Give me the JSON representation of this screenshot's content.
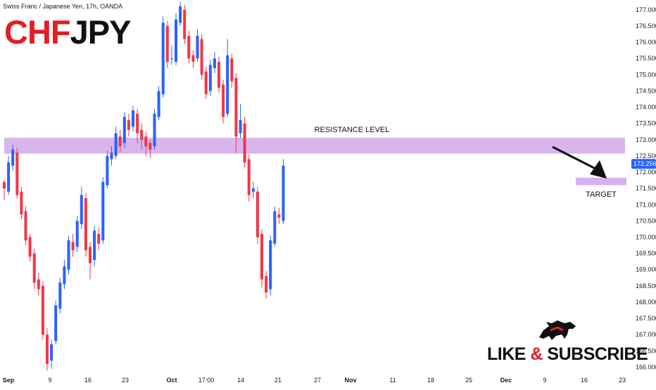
{
  "header": {
    "title": "Swiss Franc / Japanese Yen, 17h, OANDA"
  },
  "ticker": {
    "part1": "CHF",
    "part2": "JPY"
  },
  "badge": {
    "like": "LIKE",
    "amp": "&",
    "subscribe": "SUBSCRIBE"
  },
  "colors": {
    "up": "#2962ff",
    "down": "#f23645",
    "zone": "#d2a8eb",
    "price_tag": "#2962ff"
  },
  "chart_data": {
    "type": "candlestick",
    "ylim": [
      165.75,
      177.3
    ],
    "y_ticks": [
      "177.000",
      "176.500",
      "176.000",
      "175.500",
      "175.000",
      "174.500",
      "174.000",
      "173.500",
      "173.000",
      "172.500",
      "172.000",
      "171.500",
      "171.000",
      "170.500",
      "170.000",
      "169.500",
      "169.000",
      "168.500",
      "168.000",
      "167.500",
      "167.000",
      "166.500",
      "166.000"
    ],
    "x_ticks": [
      "Sep",
      "9",
      "16",
      "23",
      "Oct",
      "17:00",
      "14",
      "21",
      "27",
      "Nov",
      "11",
      "18",
      "25",
      "Dec",
      "9",
      "16",
      "23"
    ],
    "last_price": "172.256",
    "annotations": {
      "resistance_label": "RESISTANCE LEVEL",
      "target_label": "TARGET"
    },
    "resistance_zone": [
      172.57,
      173.06
    ],
    "target_zone": [
      171.6,
      171.83
    ],
    "candles": [
      [
        171.7,
        171.5,
        171.75,
        171.15
      ],
      [
        171.4,
        172.3,
        172.5,
        171.3
      ],
      [
        172.2,
        172.7,
        172.85,
        172.05
      ],
      [
        172.6,
        171.3,
        172.75,
        171.2
      ],
      [
        171.4,
        170.7,
        171.55,
        170.55
      ],
      [
        170.8,
        169.9,
        170.95,
        169.75
      ],
      [
        170.0,
        169.4,
        170.1,
        169.25
      ],
      [
        169.5,
        168.6,
        169.65,
        168.4
      ],
      [
        168.7,
        168.4,
        168.9,
        168.2
      ],
      [
        168.5,
        167.0,
        168.65,
        166.85
      ],
      [
        167.0,
        166.1,
        167.2,
        165.9
      ],
      [
        166.2,
        166.7,
        166.85,
        165.95
      ],
      [
        166.8,
        167.9,
        168.05,
        166.7
      ],
      [
        167.8,
        168.6,
        168.75,
        167.65
      ],
      [
        168.55,
        169.1,
        169.3,
        168.4
      ],
      [
        169.0,
        169.9,
        170.05,
        168.85
      ],
      [
        169.85,
        169.6,
        170.1,
        169.4
      ],
      [
        169.7,
        170.5,
        170.65,
        169.55
      ],
      [
        170.4,
        171.3,
        171.55,
        170.25
      ],
      [
        171.2,
        169.6,
        171.35,
        169.4
      ],
      [
        169.7,
        169.2,
        169.85,
        168.7
      ],
      [
        169.3,
        170.2,
        170.35,
        169.1
      ],
      [
        170.1,
        169.8,
        170.3,
        169.6
      ],
      [
        169.9,
        171.7,
        171.85,
        169.8
      ],
      [
        171.6,
        172.5,
        172.65,
        171.5
      ],
      [
        172.4,
        172.6,
        172.8,
        172.2
      ],
      [
        172.5,
        173.2,
        173.4,
        172.4
      ],
      [
        173.1,
        172.8,
        173.3,
        172.6
      ],
      [
        172.9,
        173.7,
        173.85,
        172.75
      ],
      [
        173.6,
        173.3,
        173.8,
        173.1
      ],
      [
        173.4,
        173.9,
        174.05,
        173.25
      ],
      [
        173.8,
        173.2,
        173.95,
        172.9
      ],
      [
        173.3,
        173.0,
        173.5,
        172.7
      ],
      [
        173.1,
        172.8,
        173.25,
        172.5
      ],
      [
        172.9,
        172.7,
        173.0,
        172.45
      ],
      [
        172.8,
        173.8,
        173.95,
        172.7
      ],
      [
        173.7,
        174.5,
        174.65,
        173.6
      ],
      [
        174.4,
        176.6,
        176.8,
        174.3
      ],
      [
        176.5,
        175.4,
        176.65,
        175.2
      ],
      [
        175.5,
        175.5,
        175.9,
        175.3
      ],
      [
        175.4,
        176.7,
        176.9,
        175.3
      ],
      [
        176.6,
        177.1,
        177.25,
        176.5
      ],
      [
        177.0,
        176.1,
        177.15,
        175.95
      ],
      [
        176.2,
        175.5,
        176.35,
        175.35
      ],
      [
        175.6,
        175.4,
        175.75,
        175.2
      ],
      [
        175.5,
        176.2,
        176.4,
        175.4
      ],
      [
        176.1,
        175.0,
        176.25,
        174.85
      ],
      [
        175.1,
        174.4,
        175.25,
        174.25
      ],
      [
        174.5,
        175.3,
        175.45,
        174.35
      ],
      [
        175.2,
        175.5,
        175.7,
        175.05
      ],
      [
        175.4,
        174.6,
        175.55,
        174.45
      ],
      [
        174.7,
        173.7,
        174.85,
        173.5
      ],
      [
        173.8,
        175.6,
        176.1,
        173.7
      ],
      [
        175.5,
        174.8,
        175.65,
        174.6
      ],
      [
        174.9,
        173.1,
        175.05,
        172.6
      ],
      [
        173.2,
        173.6,
        174.1,
        173.05
      ],
      [
        173.5,
        172.3,
        173.7,
        172.15
      ],
      [
        172.4,
        171.3,
        172.55,
        171.1
      ],
      [
        171.4,
        171.5,
        171.7,
        171.2
      ],
      [
        171.4,
        170.0,
        171.55,
        169.8
      ],
      [
        170.1,
        168.7,
        170.25,
        168.45
      ],
      [
        168.8,
        168.3,
        168.95,
        168.1
      ],
      [
        168.4,
        169.9,
        170.05,
        168.2
      ],
      [
        169.8,
        170.8,
        170.95,
        169.7
      ],
      [
        170.7,
        170.6,
        170.9,
        170.4
      ],
      [
        170.5,
        172.2,
        172.4,
        170.4
      ]
    ]
  }
}
